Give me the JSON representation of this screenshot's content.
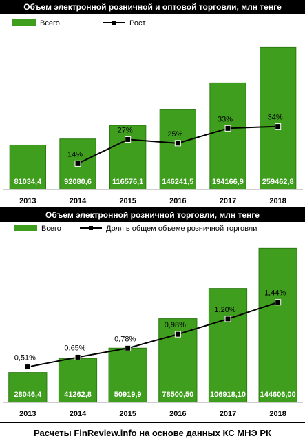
{
  "footer": "Расчеты FinReview.info на основе данных КС МНЭ РК",
  "colors": {
    "bar": "#3f9e1e",
    "bar_dark": "#2d7a12",
    "line": "#000000",
    "title_bg": "#000000"
  },
  "chart_data": [
    {
      "type": "bar",
      "title": "Объем электронной розничной и оптовой торговли, млн тенге",
      "categories": [
        "2013",
        "2014",
        "2015",
        "2016",
        "2017",
        "2018"
      ],
      "series": [
        {
          "name": "Всего",
          "type": "bar",
          "values": [
            81034.4,
            92080.6,
            116576.1,
            146241.5,
            194166.9,
            259462.8
          ],
          "labels": [
            "81034,4",
            "92080,6",
            "116576,1",
            "146241,5",
            "194166,9",
            "259462,8"
          ]
        },
        {
          "name": "Рост",
          "type": "line",
          "values": [
            null,
            14,
            27,
            25,
            33,
            34
          ],
          "labels": [
            "",
            "14%",
            "27%",
            "25%",
            "33%",
            "34%"
          ]
        }
      ],
      "ylim": [
        0,
        270000
      ],
      "line_ylim": [
        0,
        80
      ],
      "legend_position": "top-left",
      "grid": false
    },
    {
      "type": "bar",
      "title": "Объем электронной розничной торговли, млн тенге",
      "categories": [
        "2013",
        "2014",
        "2015",
        "2016",
        "2017",
        "2018"
      ],
      "series": [
        {
          "name": "Всего",
          "type": "bar",
          "values": [
            28046.4,
            41262.8,
            50919.9,
            78500.5,
            106918.1,
            144606.0
          ],
          "labels": [
            "28046,4",
            "41262,8",
            "50919,9",
            "78500,50",
            "106918,10",
            "144606,00"
          ]
        },
        {
          "name": "Доля в общем объеме розничной торговли",
          "type": "line",
          "values": [
            0.51,
            0.65,
            0.78,
            0.98,
            1.2,
            1.44
          ],
          "labels": [
            "0,51%",
            "0,65%",
            "0,78%",
            "0,98%",
            "1,20%",
            "1,44%"
          ]
        }
      ],
      "ylim": [
        0,
        150000
      ],
      "line_ylim": [
        0,
        2.3
      ],
      "legend_position": "top-left",
      "grid": false
    }
  ]
}
